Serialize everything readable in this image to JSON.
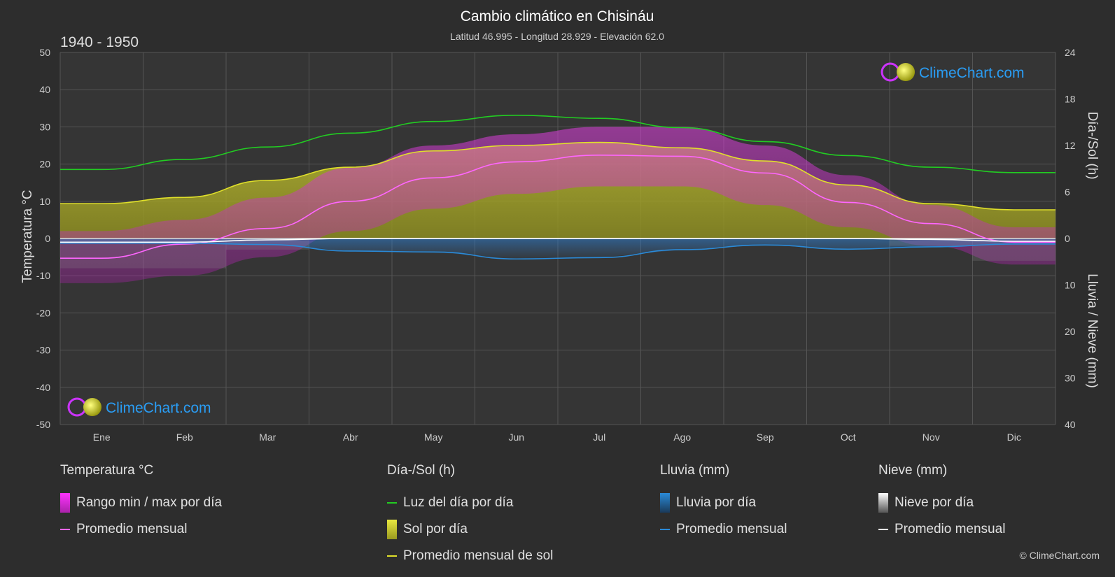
{
  "chart_data": {
    "type": "area",
    "title": "Cambio climático en Chisináu",
    "subtitle": "Latitud 46.995 - Longitud 28.929 - Elevación 62.0",
    "period": "1940 - 1950",
    "y_left_label": "Temperatura °C",
    "y_right_top_label": "Día-/Sol (h)",
    "y_right_bottom_label": "Lluvia / Nieve (mm)",
    "ylim_temperature": [
      -50,
      50
    ],
    "y_temperature_ticks": [
      "50",
      "40",
      "30",
      "20",
      "10",
      "0",
      "-10",
      "-20",
      "-30",
      "-40",
      "-50"
    ],
    "ylim_hours": [
      0,
      24
    ],
    "y_hours_ticks": [
      "24",
      "18",
      "12",
      "6",
      "0"
    ],
    "ylim_precip_mm": [
      0,
      40
    ],
    "y_precip_ticks": [
      "10",
      "20",
      "30",
      "40"
    ],
    "categories": [
      "Ene",
      "Feb",
      "Mar",
      "Abr",
      "May",
      "Jun",
      "Jul",
      "Ago",
      "Sep",
      "Oct",
      "Nov",
      "Dic"
    ],
    "grid": true,
    "series": [
      {
        "name": "Luz del día por día",
        "unit": "h",
        "color": "#22cc22",
        "values": [
          8.9,
          10.2,
          11.8,
          13.6,
          15.1,
          15.9,
          15.5,
          14.3,
          12.5,
          10.7,
          9.2,
          8.5
        ]
      },
      {
        "name": "Promedio mensual de sol",
        "unit": "h",
        "color": "#e0e02a",
        "values": [
          4.5,
          5.3,
          7.5,
          9.2,
          11.3,
          12.0,
          12.4,
          11.7,
          10.0,
          6.9,
          4.5,
          3.7
        ]
      },
      {
        "name": "Promedio mensual",
        "group": "Temperatura °C",
        "unit": "°C",
        "color": "#ff66ff",
        "values": [
          -5.3,
          -1.5,
          2.7,
          10.0,
          16.3,
          20.6,
          22.4,
          22.1,
          17.6,
          9.7,
          4.0,
          -1.0
        ]
      },
      {
        "name": "Promedio mensual",
        "group": "Lluvia (mm)",
        "unit": "mm",
        "color": "#2a8ad8",
        "values": [
          1.0,
          1.0,
          1.3,
          2.7,
          2.9,
          4.4,
          4.1,
          2.4,
          1.4,
          2.3,
          1.8,
          1.2
        ]
      },
      {
        "name": "Promedio mensual",
        "group": "Nieve (mm)",
        "unit": "mm",
        "color": "#ffffff",
        "values": [
          0.8,
          0.8,
          0.3,
          0.0,
          0.0,
          0.0,
          0.0,
          0.0,
          0.0,
          0.0,
          0.2,
          0.6
        ]
      },
      {
        "name": "Rango min / max por día",
        "unit": "°C",
        "color": "#d020d0",
        "min": [
          -12,
          -10,
          -5,
          2,
          8,
          12,
          14,
          14,
          9,
          3,
          -2,
          -7
        ],
        "max": [
          2,
          5,
          11,
          19,
          25,
          28,
          30,
          30,
          25,
          17,
          9,
          3
        ]
      }
    ]
  },
  "legend": {
    "temperature": {
      "title": "Temperatura °C",
      "items": [
        "Rango min / max por día",
        "Promedio mensual"
      ]
    },
    "daylight": {
      "title": "Día-/Sol (h)",
      "items": [
        "Luz del día por día",
        "Sol por día",
        "Promedio mensual de sol"
      ]
    },
    "rain": {
      "title": "Lluvia (mm)",
      "items": [
        "Lluvia por día",
        "Promedio mensual"
      ]
    },
    "snow": {
      "title": "Nieve (mm)",
      "items": [
        "Nieve por día",
        "Promedio mensual"
      ]
    }
  },
  "watermark": "ClimeChart.com",
  "copyright": "© ClimeChart.com"
}
